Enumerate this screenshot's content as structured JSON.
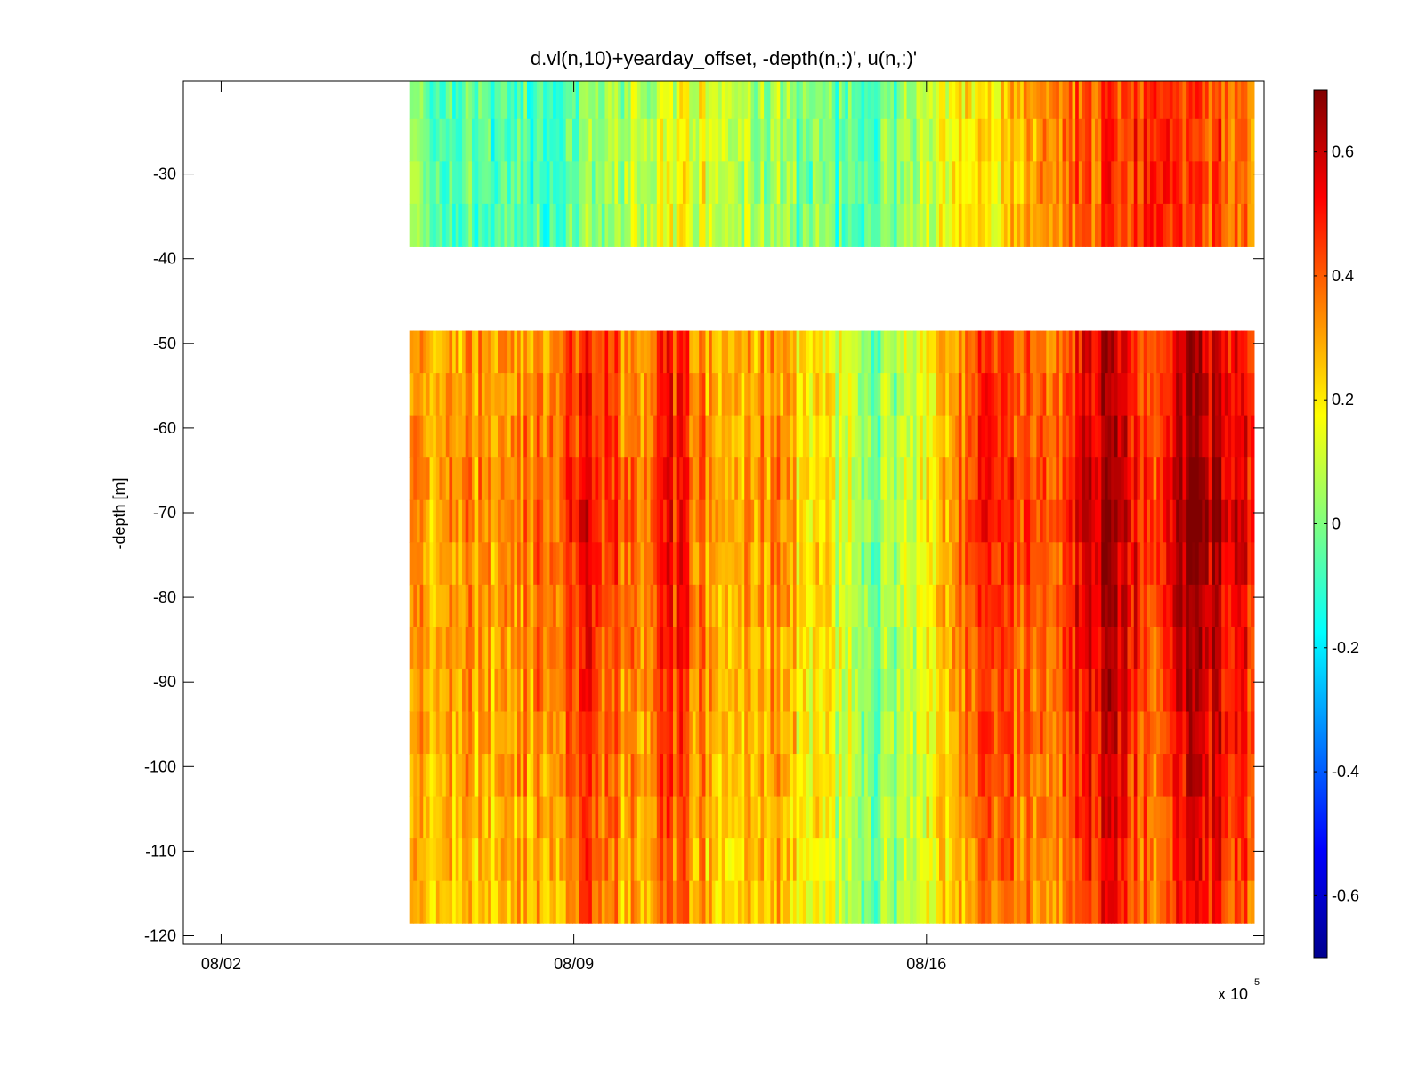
{
  "chart_data": {
    "type": "heatmap",
    "title": "d.vl(n,10)+yearday_offset, -depth(n,:)', u(n,:)'",
    "xlabel": "",
    "ylabel": "-depth [m]",
    "x_axis": {
      "ticks": [
        "08/02",
        "08/09",
        "08/16"
      ],
      "multiplier_label": "x 10",
      "multiplier_exponent": "5",
      "range_days_from_08_02": [
        -0.75,
        20.7
      ]
    },
    "y_axis": {
      "ticks": [
        -30,
        -40,
        -50,
        -60,
        -70,
        -80,
        -90,
        -100,
        -110,
        -120
      ],
      "ylim": [
        -121,
        -19
      ]
    },
    "colorbar": {
      "ticks": [
        "0.6",
        "0.4",
        "0.2",
        "0",
        "-0.2",
        "-0.4",
        "-0.6"
      ],
      "clim": [
        -0.7,
        0.7
      ],
      "colormap": "jet"
    },
    "grid": false,
    "data_extent": {
      "start": "08/05 18:00",
      "end": "08/23 12:00",
      "depth_bins_m": [
        -21,
        -26,
        -31,
        -36,
        -41,
        -46,
        -51,
        -56,
        -61,
        -66,
        -71,
        -76,
        -81,
        -86,
        -91,
        -96,
        -101,
        -106,
        -111,
        -116
      ],
      "gap_between_m": [
        -41,
        -46
      ]
    },
    "mean_u_by_time": {
      "x_days": [
        3.8,
        4.5,
        5.5,
        6.5,
        7.2,
        7.8,
        8.3,
        8.8,
        9.3,
        10.0,
        10.8,
        11.5,
        12.3,
        13.0,
        13.7,
        14.5,
        15.3,
        15.8,
        16.5,
        17.2,
        17.8,
        18.5,
        19.2,
        19.8,
        20.5
      ],
      "upper_layer_u": [
        0.0,
        -0.05,
        -0.1,
        -0.05,
        0.0,
        0.05,
        0.1,
        0.12,
        0.15,
        0.12,
        0.05,
        0.0,
        -0.05,
        -0.05,
        0.05,
        0.15,
        0.2,
        0.25,
        0.3,
        0.4,
        0.45,
        0.5,
        0.45,
        0.4,
        0.35
      ],
      "lower_layer_u": [
        0.25,
        0.3,
        0.25,
        0.35,
        0.45,
        0.35,
        0.3,
        0.45,
        0.35,
        0.25,
        0.3,
        0.2,
        0.1,
        0.0,
        0.1,
        0.25,
        0.45,
        0.35,
        0.3,
        0.5,
        0.55,
        0.35,
        0.6,
        0.5,
        0.45
      ]
    }
  }
}
